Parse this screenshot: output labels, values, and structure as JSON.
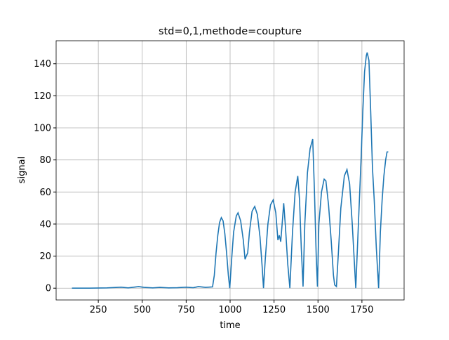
{
  "chart_data": {
    "type": "line",
    "title": "std=0,1,methode=coupture",
    "x_label": "time",
    "y_label": "signal",
    "xlim": [
      10,
      1990
    ],
    "ylim": [
      -7.35,
      154.35
    ],
    "xticks": [
      250,
      500,
      750,
      1000,
      1250,
      1500,
      1750
    ],
    "yticks": [
      0,
      20,
      40,
      60,
      80,
      100,
      120,
      140
    ],
    "grid": true,
    "series": [
      {
        "color": "#1f77b4",
        "x": [
          100,
          200,
          300,
          380,
          420,
          480,
          510,
          560,
          600,
          650,
          700,
          750,
          790,
          820,
          860,
          900,
          910,
          920,
          930,
          940,
          950,
          960,
          970,
          980,
          990,
          998,
          1010,
          1020,
          1035,
          1045,
          1060,
          1075,
          1085,
          1092,
          1100,
          1110,
          1125,
          1140,
          1155,
          1170,
          1182,
          1190,
          1200,
          1215,
          1230,
          1245,
          1260,
          1272,
          1280,
          1288,
          1296,
          1305,
          1315,
          1328,
          1340,
          1355,
          1370,
          1385,
          1395,
          1405,
          1415,
          1425,
          1440,
          1455,
          1470,
          1480,
          1490,
          1497,
          1505,
          1520,
          1535,
          1545,
          1560,
          1575,
          1588,
          1595,
          1605,
          1615,
          1630,
          1650,
          1665,
          1680,
          1695,
          1710,
          1715,
          1730,
          1745,
          1755,
          1765,
          1775,
          1780,
          1790,
          1800,
          1810,
          1820,
          1832,
          1845,
          1855,
          1865,
          1875,
          1885,
          1893,
          1900
        ],
        "values": [
          0,
          0,
          0.2,
          0.6,
          0.2,
          1,
          0.5,
          0.2,
          0.5,
          0.2,
          0.3,
          0.6,
          0.3,
          1,
          0.5,
          0.8,
          8,
          22,
          33,
          41,
          44,
          42,
          34,
          22,
          8,
          0,
          20,
          35,
          45,
          47,
          42,
          30,
          18,
          20,
          22,
          35,
          48,
          51,
          46,
          32,
          14,
          0,
          18,
          40,
          52,
          55,
          47,
          30,
          33,
          29,
          40,
          53,
          38,
          15,
          0,
          35,
          60,
          70,
          55,
          25,
          1,
          40,
          72,
          87,
          93,
          60,
          20,
          1,
          40,
          60,
          68,
          67,
          52,
          30,
          8,
          2,
          1,
          20,
          50,
          70,
          74,
          65,
          40,
          10,
          0,
          40,
          80,
          110,
          135,
          145,
          147,
          142,
          110,
          75,
          55,
          25,
          0,
          35,
          55,
          70,
          80,
          85,
          85
        ]
      }
    ]
  }
}
